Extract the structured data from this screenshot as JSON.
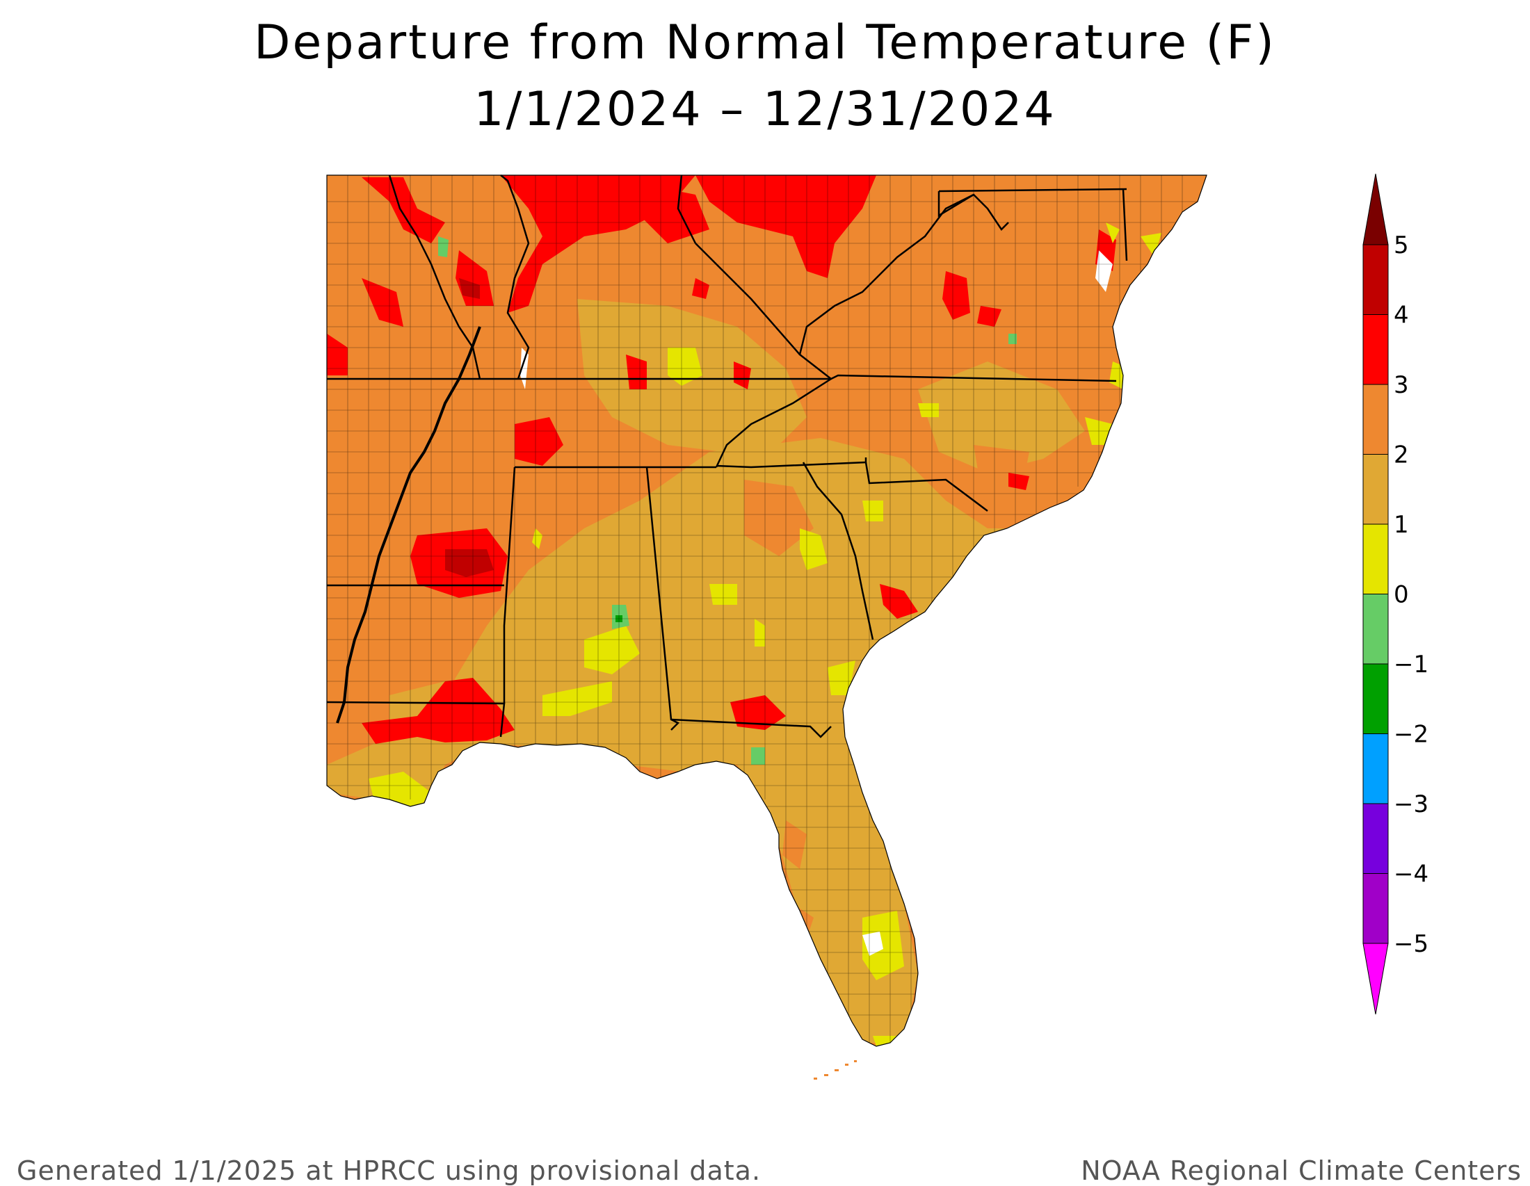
{
  "title": {
    "line1": "Departure from Normal Temperature (F)",
    "line2": "1/1/2024 – 12/31/2024"
  },
  "legend": {
    "units": "F",
    "boundaries": [
      "5",
      "4",
      "3",
      "2",
      "1",
      "0",
      "−1",
      "−2",
      "−3",
      "−4",
      "−5"
    ],
    "bins": [
      {
        "range": ">5",
        "color": "#7a0000"
      },
      {
        "range": "4 to 5",
        "color": "#c00000"
      },
      {
        "range": "3 to 4",
        "color": "#ff0000"
      },
      {
        "range": "2 to 3",
        "color": "#ee8830"
      },
      {
        "range": "1 to 2",
        "color": "#e0a834"
      },
      {
        "range": "0 to 1",
        "color": "#e5e500"
      },
      {
        "range": "-1 to 0",
        "color": "#66cc66"
      },
      {
        "range": "-2 to -1",
        "color": "#00a000"
      },
      {
        "range": "-3 to -2",
        "color": "#00a0ff"
      },
      {
        "range": "-4 to -3",
        "color": "#7700dd"
      },
      {
        "range": "-5 to -4",
        "color": "#a000c8"
      },
      {
        "range": "<-5",
        "color": "#ff00ff"
      }
    ]
  },
  "map": {
    "region": "Southeast United States",
    "dominant_class": "2 to 3",
    "water_color": "#ffffff",
    "boundary_color": "#000000"
  },
  "footer": {
    "left": "Generated 1/1/2025 at HPRCC using provisional data.",
    "right": "NOAA Regional Climate Centers"
  }
}
